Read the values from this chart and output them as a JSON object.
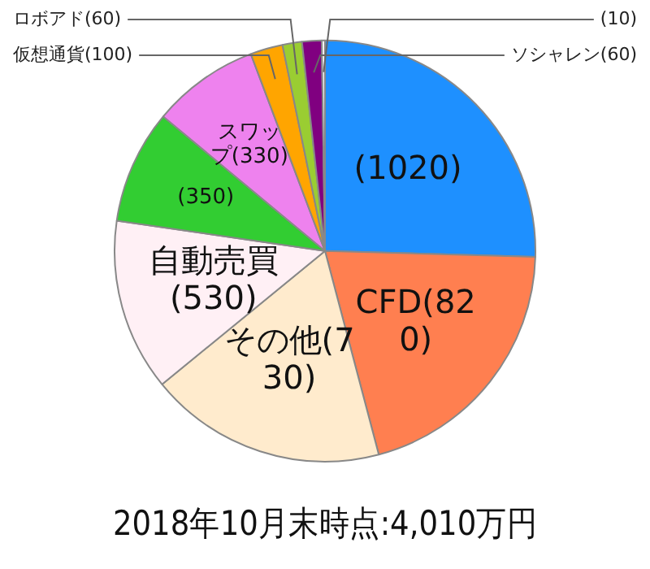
{
  "chart_data": {
    "type": "pie",
    "title": "2018年10月末時点:4,010万円",
    "categories": [
      null,
      "CFD",
      "その他",
      "自動売買",
      null,
      "スワップ",
      "仮想通貨",
      "ロボアド",
      "ソシャレン",
      null
    ],
    "values": [
      1020,
      820,
      730,
      530,
      350,
      330,
      100,
      60,
      60,
      10
    ],
    "colors": [
      "#1e90ff",
      "#ff7f50",
      "#ffebcd",
      "#fff0f5",
      "#32cd32",
      "#ee82ee",
      "#ffa500",
      "#9acd32",
      "#800080",
      "#f5f5f5"
    ],
    "value_labels": [
      "(1020)",
      "(820)",
      "(730)",
      "(530)",
      "(350)",
      "(330)",
      "(100)",
      "(60)",
      "(60)",
      "(10)"
    ],
    "legend": false
  }
}
